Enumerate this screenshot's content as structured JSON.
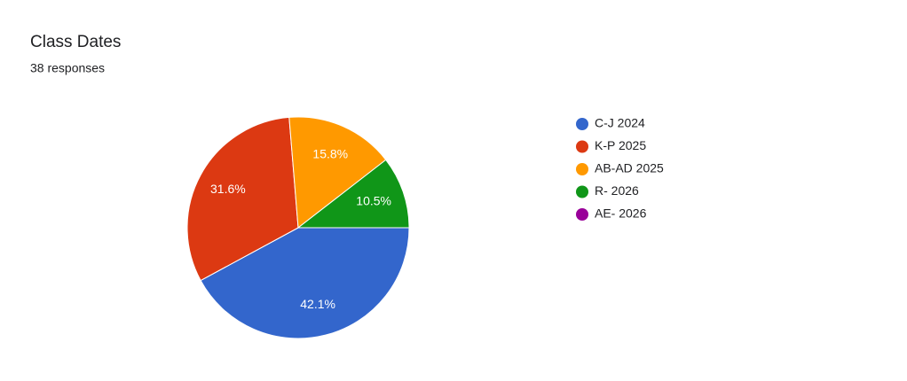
{
  "chart_data": {
    "type": "pie",
    "title": "Class Dates",
    "subtitle": "38 responses",
    "categories": [
      "C-J 2024",
      "K-P 2025",
      "AB-AD 2025",
      "R- 2026",
      "AE- 2026"
    ],
    "values": [
      42.1,
      31.6,
      15.8,
      10.5,
      0
    ],
    "value_labels": [
      "42.1%",
      "31.6%",
      "15.8%",
      "10.5%",
      null
    ],
    "colors": [
      "#3366cc",
      "#dc3912",
      "#ff9900",
      "#109618",
      "#990099"
    ],
    "legend": "right"
  }
}
